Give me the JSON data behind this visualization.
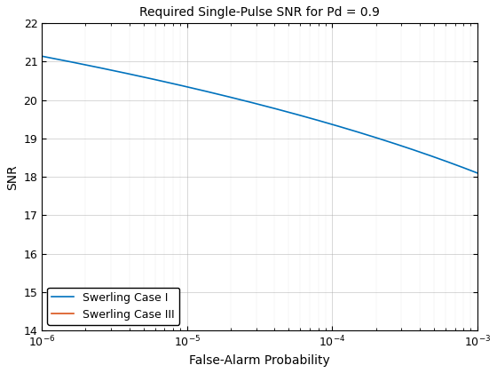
{
  "title": "Required Single-Pulse SNR for Pd = 0.9",
  "xlabel": "False-Alarm Probability",
  "ylabel": "SNR",
  "xlim": [
    1e-06,
    0.001
  ],
  "ylim": [
    14,
    22
  ],
  "yticks": [
    14,
    15,
    16,
    17,
    18,
    19,
    20,
    21,
    22
  ],
  "xticks": [
    1e-06,
    1e-05,
    0.0001,
    0.001
  ],
  "xtick_labels": [
    "10$^{-6}$",
    "10$^{-5}$",
    "10$^{-4}$",
    "10$^{-3}$"
  ],
  "color_case1": "#0072BD",
  "color_case3": "#D95319",
  "legend_labels": [
    "Swerling Case I",
    "Swerling Case III"
  ],
  "pd": 0.9,
  "n_points": 400
}
